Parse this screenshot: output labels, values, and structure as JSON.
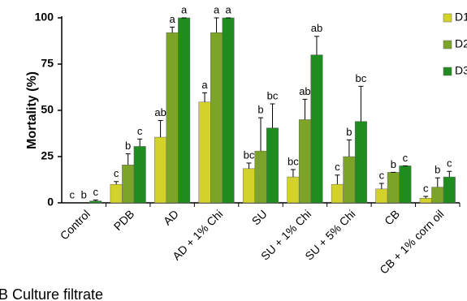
{
  "chart_data": {
    "type": "bar",
    "y_label": "Mortality (%)",
    "caption": "B Culture filtrate",
    "categories": [
      "Control",
      "PDB",
      "AD",
      "AD + 1% Chi",
      "SU",
      "SU + 1% Chi",
      "SU + 5% Chi",
      "CB",
      "CB + 1% corn oil"
    ],
    "series": [
      {
        "name": "D1",
        "color": "#d2d22a",
        "values": [
          0,
          10,
          35.5,
          54.5,
          18.5,
          14,
          10,
          7.5,
          2.5
        ],
        "errors": [
          0,
          1.5,
          9,
          5,
          3,
          4,
          5,
          3,
          1
        ],
        "letters": [
          "c",
          "c",
          "ab",
          "a",
          "bc",
          "bc",
          "c",
          "c",
          "c"
        ]
      },
      {
        "name": "D2",
        "color": "#7ba428",
        "values": [
          0,
          20.5,
          92,
          92,
          28,
          45,
          25,
          16.5,
          8.5
        ],
        "errors": [
          0,
          6,
          3,
          8,
          18,
          11,
          9,
          0,
          5
        ],
        "letters": [
          "b",
          "b",
          "a",
          "a",
          "b",
          "ab",
          "b",
          "b",
          "b"
        ]
      },
      {
        "name": "D3",
        "color": "#1e8c1e",
        "values": [
          1,
          30.5,
          100,
          100,
          40.5,
          80,
          44,
          20,
          14
        ],
        "errors": [
          0.5,
          4,
          0,
          0,
          13,
          10,
          19,
          0,
          3
        ],
        "letters": [
          "c",
          "c",
          "a",
          "a",
          "bc",
          "ab",
          "bc",
          "c",
          "c"
        ]
      }
    ],
    "ylim": [
      0,
      100
    ],
    "yticks": [
      0,
      25,
      50,
      75,
      100
    ],
    "grid": false
  }
}
